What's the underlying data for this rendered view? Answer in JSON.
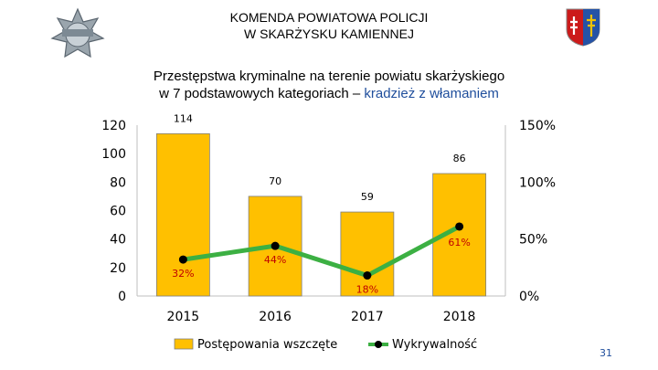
{
  "header": {
    "line1": "KOMENDA POWIATOWA POLICJI",
    "line2": "W SKARŻYSKU KAMIENNEJ"
  },
  "subtitle": {
    "line1": "Przestępstwa kryminalne na terenie powiatu skarżyskiego",
    "line2_prefix": "w 7 podstawowych kategoriach – ",
    "line2_highlight": "kradzież z włamaniem"
  },
  "page_number": "31",
  "colors": {
    "bar": "#ffc000",
    "line": "#3cb043",
    "highlight": "#1f4e9c",
    "label_red": "#c00000"
  },
  "chart_data": {
    "type": "bar",
    "categories": [
      "2015",
      "2016",
      "2017",
      "2018"
    ],
    "series": [
      {
        "name": "Postępowania wszczęte",
        "type": "bar",
        "axis": "left",
        "values": [
          114,
          70,
          59,
          86
        ],
        "labels": [
          "114",
          "70",
          "59",
          "86"
        ]
      },
      {
        "name": "Wykrywalność",
        "type": "line",
        "axis": "right",
        "values": [
          32,
          44,
          18,
          61
        ],
        "labels": [
          "32%",
          "44%",
          "18%",
          "61%"
        ]
      }
    ],
    "y_left": {
      "min": 0,
      "max": 120,
      "ticks": [
        "0",
        "20",
        "40",
        "60",
        "80",
        "100",
        "120"
      ]
    },
    "y_right": {
      "min": 0,
      "max": 150,
      "ticks": [
        "0%",
        "50%",
        "100%",
        "150%"
      ]
    },
    "legend": [
      "Postępowania wszczęte",
      "Wykrywalność"
    ],
    "legend_position": "bottom"
  }
}
